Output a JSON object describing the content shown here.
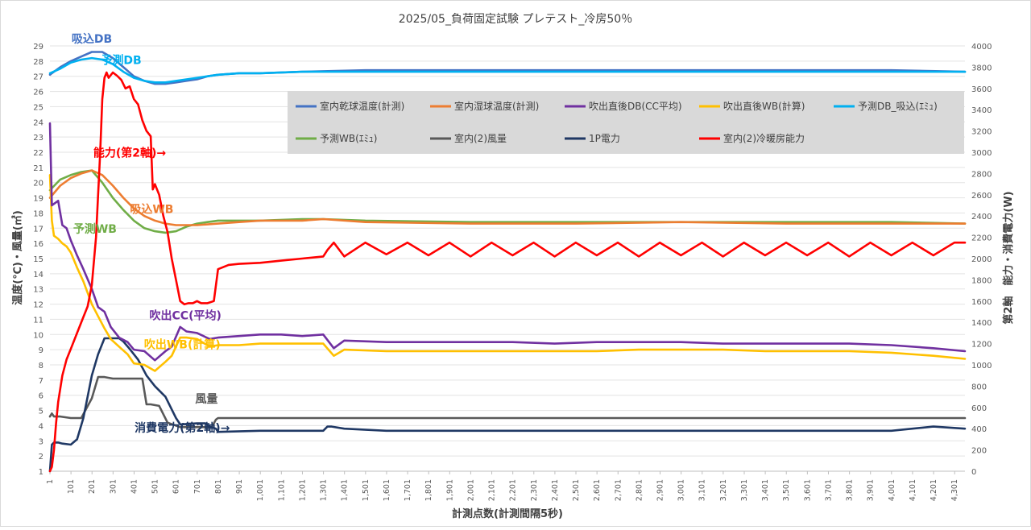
{
  "chart_data": {
    "type": "line",
    "title": "2025/05_負荷固定試験 プレテスト_冷房50％",
    "xlabel": "計測点数(計測間隔5秒)",
    "ylabel_left": "温度(℃)・風量(㎥)",
    "ylabel_right": "第2軸　能力・消費電力(W)",
    "xlim": [
      1,
      4350
    ],
    "ylim_left": [
      1,
      29
    ],
    "ylim_right": [
      0,
      4000
    ],
    "x_ticks": [
      "1",
      "101",
      "201",
      "301",
      "401",
      "501",
      "601",
      "701",
      "801",
      "901",
      "1,001",
      "1,101",
      "1,201",
      "1,301",
      "1,401",
      "1,501",
      "1,601",
      "1,701",
      "1,801",
      "1,901",
      "2,001",
      "2,101",
      "2,201",
      "2,301",
      "2,401",
      "2,501",
      "2,601",
      "2,701",
      "2,801",
      "2,901",
      "3,001",
      "3,101",
      "3,201",
      "3,301",
      "3,401",
      "3,501",
      "3,601",
      "3,701",
      "3,801",
      "3,901",
      "4,001",
      "4,101",
      "4,201",
      "4,301"
    ],
    "y_ticks_left": [
      1,
      2,
      3,
      4,
      5,
      6,
      7,
      8,
      9,
      10,
      11,
      12,
      13,
      14,
      15,
      16,
      17,
      18,
      19,
      20,
      21,
      22,
      23,
      24,
      25,
      26,
      27,
      28,
      29
    ],
    "y_ticks_right": [
      0,
      200,
      400,
      600,
      800,
      1000,
      1200,
      1400,
      1600,
      1800,
      2000,
      2200,
      2400,
      2600,
      2800,
      3000,
      3200,
      3400,
      3600,
      3800,
      4000
    ],
    "grid": "horizontal",
    "legend_position": "top-right-inside",
    "series": [
      {
        "name": "室内乾球温度(計測)",
        "color": "#4472C4",
        "axis": "left",
        "x": [
          1,
          10,
          50,
          100,
          150,
          200,
          250,
          300,
          350,
          400,
          450,
          500,
          550,
          600,
          650,
          700,
          750,
          800,
          900,
          1000,
          1200,
          1500,
          2000,
          2500,
          3000,
          3500,
          4000,
          4350
        ],
        "values": [
          27.1,
          27.2,
          27.6,
          28.0,
          28.3,
          28.6,
          28.6,
          28.2,
          27.6,
          27.0,
          26.7,
          26.5,
          26.5,
          26.6,
          26.7,
          26.8,
          27.0,
          27.1,
          27.2,
          27.2,
          27.3,
          27.4,
          27.4,
          27.4,
          27.4,
          27.4,
          27.4,
          27.3
        ]
      },
      {
        "name": "室内湿球温度(計測)",
        "color": "#ED7D31",
        "axis": "left",
        "x": [
          1,
          50,
          100,
          150,
          200,
          250,
          300,
          350,
          400,
          450,
          500,
          550,
          600,
          700,
          800,
          900,
          1000,
          1200,
          1300,
          1500,
          2000,
          2500,
          3000,
          3500,
          4000,
          4350
        ],
        "values": [
          19.0,
          19.8,
          20.3,
          20.6,
          20.8,
          20.5,
          19.8,
          19.0,
          18.3,
          17.8,
          17.5,
          17.3,
          17.2,
          17.2,
          17.3,
          17.4,
          17.5,
          17.5,
          17.6,
          17.4,
          17.3,
          17.3,
          17.4,
          17.3,
          17.3,
          17.3
        ]
      },
      {
        "name": "吹出直後DB(CC平均)",
        "color": "#7030A0",
        "axis": "left",
        "x": [
          1,
          10,
          20,
          40,
          60,
          80,
          100,
          130,
          160,
          200,
          230,
          260,
          290,
          330,
          370,
          400,
          450,
          500,
          550,
          580,
          620,
          650,
          700,
          760,
          800,
          900,
          1000,
          1100,
          1200,
          1300,
          1350,
          1400,
          1600,
          1800,
          2000,
          2200,
          2400,
          2600,
          2800,
          3000,
          3200,
          3400,
          3600,
          3800,
          4000,
          4200,
          4350
        ],
        "values": [
          23.9,
          18.5,
          18.6,
          18.8,
          17.2,
          17.0,
          16.2,
          15.2,
          14.3,
          13.0,
          11.8,
          11.5,
          10.5,
          9.8,
          9.5,
          9.0,
          8.9,
          8.3,
          8.9,
          9.2,
          10.5,
          10.2,
          10.1,
          9.7,
          9.8,
          9.9,
          10.0,
          10.0,
          9.9,
          10.0,
          9.1,
          9.6,
          9.5,
          9.5,
          9.5,
          9.5,
          9.4,
          9.5,
          9.5,
          9.5,
          9.4,
          9.4,
          9.4,
          9.4,
          9.3,
          9.1,
          8.9
        ]
      },
      {
        "name": "吹出直後WB(計算)",
        "color": "#FFC000",
        "axis": "left",
        "x": [
          1,
          10,
          20,
          40,
          60,
          80,
          100,
          130,
          160,
          200,
          230,
          260,
          290,
          330,
          370,
          400,
          450,
          500,
          550,
          580,
          620,
          650,
          700,
          760,
          800,
          900,
          1000,
          1100,
          1200,
          1300,
          1350,
          1400,
          1600,
          1800,
          2000,
          2200,
          2400,
          2600,
          2800,
          3000,
          3200,
          3400,
          3600,
          3800,
          4000,
          4200,
          4350
        ],
        "values": [
          20.5,
          17.5,
          16.5,
          16.3,
          16.0,
          15.8,
          15.4,
          14.4,
          13.5,
          12.0,
          11.2,
          10.4,
          9.7,
          9.2,
          8.7,
          8.1,
          8.0,
          7.6,
          8.2,
          8.6,
          9.8,
          9.8,
          9.7,
          9.2,
          9.3,
          9.3,
          9.4,
          9.4,
          9.4,
          9.4,
          8.6,
          9.0,
          8.9,
          8.9,
          8.9,
          8.9,
          8.9,
          8.9,
          9.0,
          9.0,
          9.0,
          8.9,
          8.9,
          8.9,
          8.8,
          8.6,
          8.4
        ]
      },
      {
        "name": "予測DB_吸込(ｴﾐｭ)",
        "color": "#00B0F0",
        "axis": "left",
        "x": [
          1,
          50,
          100,
          150,
          200,
          250,
          300,
          350,
          400,
          450,
          500,
          550,
          600,
          650,
          700,
          750,
          800,
          900,
          1000,
          1200,
          1500,
          2000,
          2500,
          3000,
          3500,
          4000,
          4350
        ],
        "values": [
          27.2,
          27.5,
          27.9,
          28.1,
          28.2,
          28.1,
          27.8,
          27.3,
          26.9,
          26.7,
          26.6,
          26.6,
          26.7,
          26.8,
          26.9,
          27.0,
          27.1,
          27.2,
          27.2,
          27.3,
          27.3,
          27.3,
          27.3,
          27.3,
          27.3,
          27.3,
          27.3
        ]
      },
      {
        "name": "予測WB(ｴﾐｭ)",
        "color": "#70AD47",
        "axis": "left",
        "x": [
          1,
          50,
          100,
          150,
          200,
          250,
          300,
          350,
          400,
          450,
          500,
          550,
          600,
          650,
          700,
          750,
          800,
          900,
          1000,
          1200,
          1300,
          1500,
          2000,
          2500,
          3000,
          3500,
          4000,
          4350
        ],
        "values": [
          19.5,
          20.2,
          20.5,
          20.7,
          20.8,
          20.0,
          19.0,
          18.2,
          17.5,
          17.0,
          16.8,
          16.7,
          16.8,
          17.1,
          17.3,
          17.4,
          17.5,
          17.5,
          17.5,
          17.6,
          17.6,
          17.5,
          17.4,
          17.4,
          17.4,
          17.4,
          17.4,
          17.3
        ]
      },
      {
        "name": "室内(2)風量",
        "color": "#595959",
        "axis": "left",
        "x": [
          1,
          10,
          20,
          50,
          100,
          150,
          200,
          230,
          260,
          300,
          400,
          440,
          460,
          480,
          520,
          560,
          620,
          700,
          770,
          790,
          800,
          830,
          900,
          1500,
          2000,
          3000,
          4000,
          4350
        ],
        "values": [
          4.6,
          4.8,
          4.6,
          4.6,
          4.5,
          4.5,
          5.8,
          7.2,
          7.2,
          7.1,
          7.1,
          7.1,
          5.4,
          5.4,
          5.3,
          4.2,
          3.9,
          3.9,
          3.9,
          4.4,
          4.5,
          4.5,
          4.5,
          4.5,
          4.5,
          4.5,
          4.5,
          4.5
        ]
      },
      {
        "name": "1P電力",
        "color": "#1F3864",
        "axis": "left2",
        "x": [
          1,
          10,
          20,
          40,
          60,
          100,
          130,
          160,
          200,
          230,
          260,
          300,
          330,
          350,
          380,
          420,
          460,
          500,
          550,
          600,
          620,
          700,
          740,
          760,
          790,
          800,
          1000,
          1300,
          1320,
          1340,
          1400,
          1600,
          1800,
          2000,
          2200,
          2400,
          2600,
          2800,
          3000,
          3200,
          3400,
          3600,
          3800,
          4000,
          4200,
          4350
        ],
        "values": [
          0,
          250,
          270,
          270,
          260,
          250,
          300,
          500,
          900,
          1100,
          1250,
          1250,
          1250,
          1220,
          1150,
          1050,
          900,
          800,
          700,
          500,
          440,
          450,
          450,
          420,
          400,
          370,
          380,
          380,
          420,
          420,
          400,
          380,
          380,
          380,
          380,
          380,
          380,
          380,
          380,
          380,
          380,
          380,
          380,
          380,
          420,
          400
        ]
      },
      {
        "name": "室内(2)冷暖房能力",
        "color": "#FF0000",
        "axis": "right",
        "x": [
          1,
          10,
          20,
          30,
          40,
          60,
          80,
          100,
          130,
          160,
          180,
          200,
          220,
          240,
          250,
          260,
          270,
          280,
          300,
          320,
          340,
          360,
          380,
          400,
          420,
          440,
          460,
          480,
          490,
          500,
          520,
          540,
          560,
          580,
          600,
          620,
          640,
          660,
          680,
          700,
          720,
          750,
          780,
          790,
          800,
          850,
          900,
          1000,
          1100,
          1200,
          1300,
          1320,
          1350,
          1400,
          1500,
          1600,
          1700,
          1800,
          1900,
          2000,
          2100,
          2200,
          2300,
          2400,
          2500,
          2600,
          2700,
          2800,
          2900,
          3000,
          3100,
          3200,
          3300,
          3400,
          3500,
          3600,
          3700,
          3800,
          3900,
          4000,
          4100,
          4200,
          4300,
          4350
        ],
        "values": [
          0,
          40,
          200,
          450,
          650,
          900,
          1050,
          1150,
          1300,
          1450,
          1550,
          1750,
          2200,
          3000,
          3500,
          3700,
          3750,
          3700,
          3750,
          3720,
          3680,
          3600,
          3620,
          3500,
          3450,
          3300,
          3200,
          3150,
          2650,
          2700,
          2600,
          2400,
          2250,
          2000,
          1800,
          1600,
          1570,
          1580,
          1580,
          1600,
          1580,
          1580,
          1600,
          1750,
          1900,
          1940,
          1950,
          1960,
          1980,
          2000,
          2020,
          2080,
          2150,
          2020,
          2150,
          2040,
          2150,
          2030,
          2150,
          2020,
          2150,
          2030,
          2150,
          2020,
          2150,
          2030,
          2150,
          2020,
          2150,
          2030,
          2150,
          2020,
          2150,
          2030,
          2150,
          2030,
          2150,
          2020,
          2150,
          2030,
          2150,
          2030,
          2150,
          2150
        ]
      }
    ],
    "annotations": [
      {
        "text": "吸込DB",
        "color": "#4472C4",
        "x": 200,
        "y": 29.2,
        "axis": "left"
      },
      {
        "text": "予測DB",
        "color": "#00B0F0",
        "x": 340,
        "y": 27.8,
        "axis": "left"
      },
      {
        "text": "能力(第2軸)→",
        "color": "#FF0000",
        "x": 380,
        "y": 21.7,
        "axis": "left"
      },
      {
        "text": "吸込WB",
        "color": "#ED7D31",
        "x": 485,
        "y": 18.0,
        "axis": "left"
      },
      {
        "text": "予測WB",
        "color": "#70AD47",
        "x": 215,
        "y": 16.7,
        "axis": "left"
      },
      {
        "text": "吹出CC(平均)",
        "color": "#7030A0",
        "x": 645,
        "y": 11.0,
        "axis": "left"
      },
      {
        "text": "吹出WB(計算)",
        "color": "#FFC000",
        "x": 630,
        "y": 9.1,
        "axis": "left"
      },
      {
        "text": "風量",
        "color": "#595959",
        "x": 745,
        "y": 5.5,
        "axis": "left"
      },
      {
        "text": "消費電力(第2軸)→",
        "color": "#1F3864",
        "x": 630,
        "y": 3.6,
        "axis": "left"
      }
    ]
  }
}
